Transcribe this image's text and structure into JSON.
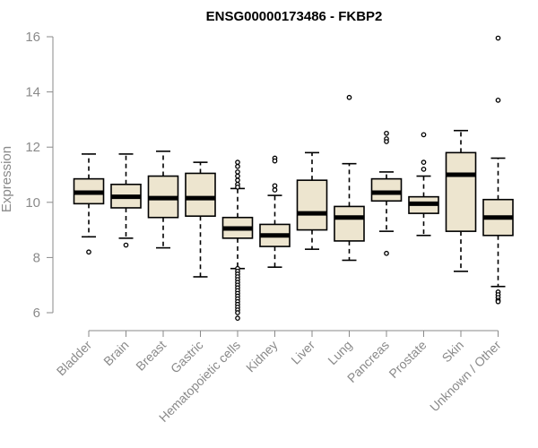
{
  "chart_data": {
    "type": "boxplot",
    "title": "ENSG00000173486 - FKBP2",
    "ylabel": "Expression",
    "xlabel": "",
    "ylim": [
      6,
      16
    ],
    "yticks": [
      6,
      8,
      10,
      12,
      14,
      16
    ],
    "grid": false,
    "box_fill": "#ede5cf",
    "line_color": "#000000",
    "axis_color": "#8a8a8a",
    "categories": [
      "Bladder",
      "Brain",
      "Breast",
      "Gastric",
      "Hematopoietic cells",
      "Kidney",
      "Liver",
      "Lung",
      "Pancreas",
      "Prostate",
      "Skin",
      "Unknown / Other"
    ],
    "boxes": [
      {
        "category": "Bladder",
        "whisker_low": 8.75,
        "q1": 9.95,
        "median": 10.35,
        "q3": 10.85,
        "whisker_high": 11.75,
        "outliers": [
          8.2
        ]
      },
      {
        "category": "Brain",
        "whisker_low": 8.7,
        "q1": 9.8,
        "median": 10.2,
        "q3": 10.65,
        "whisker_high": 11.75,
        "outliers": [
          8.45
        ]
      },
      {
        "category": "Breast",
        "whisker_low": 8.35,
        "q1": 9.45,
        "median": 10.15,
        "q3": 10.95,
        "whisker_high": 11.85,
        "outliers": []
      },
      {
        "category": "Gastric",
        "whisker_low": 7.3,
        "q1": 9.5,
        "median": 10.15,
        "q3": 11.05,
        "whisker_high": 11.45,
        "outliers": []
      },
      {
        "category": "Hematopoietic cells",
        "whisker_low": 7.6,
        "q1": 8.7,
        "median": 9.05,
        "q3": 9.45,
        "whisker_high": 10.5,
        "outliers": [
          11.45,
          11.3,
          11.1,
          10.95,
          10.8,
          10.65,
          10.55,
          7.6,
          7.5,
          7.4,
          7.3,
          7.2,
          7.1,
          7.0,
          6.9,
          6.8,
          6.7,
          6.6,
          6.5,
          6.4,
          6.3,
          6.2,
          6.1,
          6.0,
          5.8
        ]
      },
      {
        "category": "Kidney",
        "whisker_low": 7.65,
        "q1": 8.4,
        "median": 8.8,
        "q3": 9.2,
        "whisker_high": 10.25,
        "outliers": [
          11.6,
          11.5,
          10.6,
          10.45
        ]
      },
      {
        "category": "Liver",
        "whisker_low": 8.3,
        "q1": 9.0,
        "median": 9.6,
        "q3": 10.8,
        "whisker_high": 11.8,
        "outliers": []
      },
      {
        "category": "Lung",
        "whisker_low": 7.9,
        "q1": 8.6,
        "median": 9.45,
        "q3": 9.85,
        "whisker_high": 11.4,
        "outliers": [
          13.8
        ]
      },
      {
        "category": "Pancreas",
        "whisker_low": 8.95,
        "q1": 10.05,
        "median": 10.35,
        "q3": 10.85,
        "whisker_high": 11.1,
        "outliers": [
          12.5,
          12.3,
          12.2,
          8.15
        ]
      },
      {
        "category": "Prostate",
        "whisker_low": 8.8,
        "q1": 9.6,
        "median": 9.95,
        "q3": 10.2,
        "whisker_high": 10.95,
        "outliers": [
          12.45,
          11.45,
          11.2
        ]
      },
      {
        "category": "Skin",
        "whisker_low": 7.5,
        "q1": 8.95,
        "median": 11.0,
        "q3": 11.8,
        "whisker_high": 12.6,
        "outliers": []
      },
      {
        "category": "Unknown / Other",
        "whisker_low": 6.95,
        "q1": 8.8,
        "median": 9.45,
        "q3": 10.1,
        "whisker_high": 11.6,
        "outliers": [
          15.95,
          13.7,
          6.75,
          6.65,
          6.55,
          6.45,
          6.4
        ]
      }
    ]
  }
}
